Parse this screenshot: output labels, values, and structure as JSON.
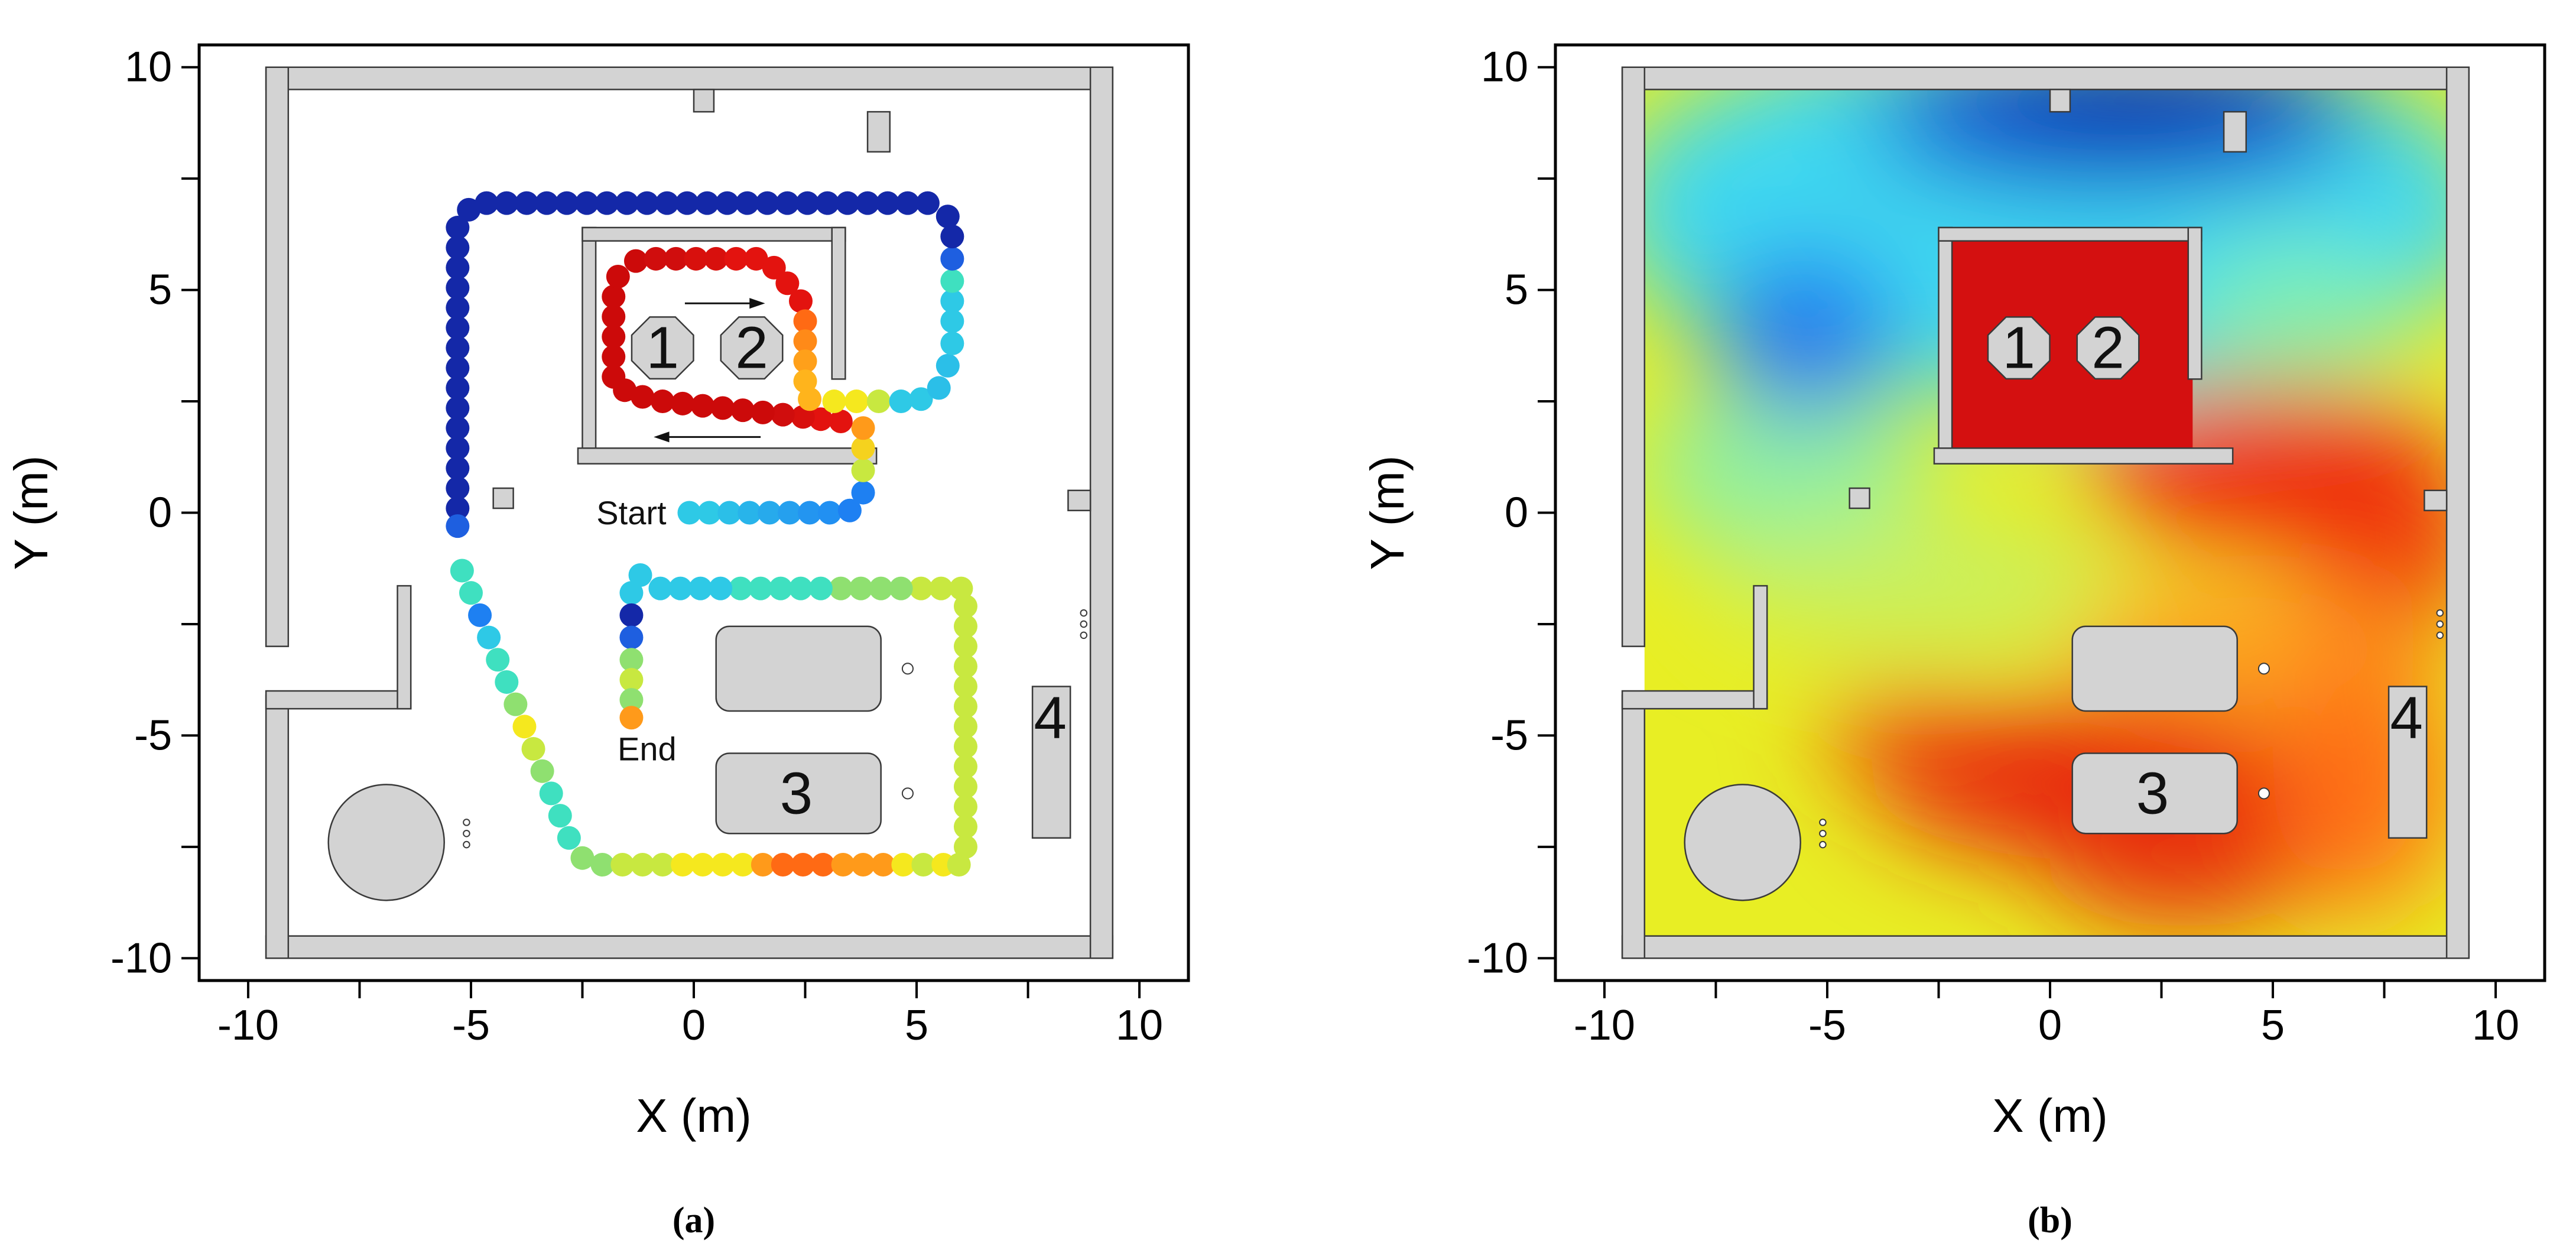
{
  "chart_data": [
    {
      "type": "scatter",
      "caption": "(a)",
      "xlabel": "X (m)",
      "ylabel": "Y (m)",
      "xlim": [
        -11.1,
        11.1
      ],
      "ylim": [
        -10.5,
        10.5
      ],
      "xticks": [
        -10,
        -5,
        0,
        5,
        10
      ],
      "yticks": [
        -10,
        -5,
        0,
        5,
        10
      ],
      "xminor": [
        -7.5,
        -2.5,
        2.5,
        7.5
      ],
      "yminor": [
        -7.5,
        -2.5,
        2.5,
        7.5
      ],
      "x": [
        -0.1,
        0.35,
        0.8,
        1.25,
        1.7,
        2.15,
        2.6,
        3.05,
        3.5,
        3.8,
        3.8,
        3.8,
        3.8,
        3.3,
        2.85,
        2.45,
        2.0,
        1.55,
        1.1,
        0.65,
        0.2,
        -0.25,
        -0.7,
        -1.15,
        -1.55,
        -1.8,
        -1.8,
        -1.8,
        -1.8,
        -1.8,
        -1.7,
        -1.3,
        -0.85,
        -0.4,
        0.05,
        0.5,
        0.95,
        1.4,
        1.8,
        2.1,
        2.4,
        2.5,
        2.5,
        2.5,
        2.5,
        2.6,
        3.15,
        3.65,
        4.15,
        4.65,
        5.1,
        5.5,
        5.7,
        5.8,
        5.8,
        5.8,
        5.8,
        5.8,
        5.8,
        5.7,
        5.25,
        4.8,
        4.35,
        3.9,
        3.45,
        3.0,
        2.55,
        2.1,
        1.65,
        1.2,
        0.75,
        0.3,
        -0.15,
        -0.6,
        -1.05,
        -1.5,
        -1.95,
        -2.4,
        -2.85,
        -3.3,
        -3.75,
        -4.2,
        -4.65,
        -5.05,
        -5.3,
        -5.3,
        -5.3,
        -5.3,
        -5.3,
        -5.3,
        -5.3,
        -5.3,
        -5.3,
        -5.3,
        -5.3,
        -5.3,
        -5.3,
        -5.3,
        -5.3,
        -5.3,
        -5.2,
        -5.0,
        -4.8,
        -4.6,
        -4.4,
        -4.2,
        -4.0,
        -3.8,
        -3.6,
        -3.4,
        -3.2,
        -3.0,
        -2.8,
        -2.5,
        -2.05,
        -1.6,
        -1.15,
        -0.7,
        -0.25,
        0.2,
        0.65,
        1.1,
        1.55,
        2.0,
        2.45,
        2.9,
        3.35,
        3.8,
        4.25,
        4.7,
        5.15,
        5.6,
        5.95,
        6.1,
        6.1,
        6.1,
        6.1,
        6.1,
        6.1,
        6.1,
        6.1,
        6.1,
        6.1,
        6.1,
        6.1,
        6.1,
        6.0,
        5.55,
        5.1,
        4.65,
        4.2,
        3.75,
        3.3,
        2.85,
        2.4,
        1.95,
        1.5,
        1.05,
        0.6,
        0.15,
        -0.3,
        -0.75,
        -1.2,
        -1.4,
        -1.4,
        -1.4,
        -1.4,
        -1.4,
        -1.4,
        -1.4
      ],
      "values": [
        0,
        0,
        0,
        0,
        0,
        0,
        0,
        0,
        0.05,
        0.45,
        0.95,
        1.45,
        1.9,
        2.05,
        2.1,
        2.15,
        2.2,
        2.25,
        2.3,
        2.35,
        2.4,
        2.45,
        2.5,
        2.6,
        2.75,
        3.05,
        3.5,
        3.95,
        4.4,
        4.85,
        5.3,
        5.65,
        5.7,
        5.7,
        5.7,
        5.7,
        5.7,
        5.7,
        5.5,
        5.15,
        4.75,
        4.3,
        3.85,
        3.4,
        2.95,
        2.55,
        2.5,
        2.5,
        2.5,
        2.5,
        2.55,
        2.8,
        3.3,
        3.8,
        4.3,
        4.75,
        5.2,
        5.7,
        6.2,
        6.65,
        6.95,
        6.95,
        6.95,
        6.95,
        6.95,
        6.95,
        6.95,
        6.95,
        6.95,
        6.95,
        6.95,
        6.95,
        6.95,
        6.95,
        6.95,
        6.95,
        6.95,
        6.95,
        6.95,
        6.95,
        6.95,
        6.95,
        6.95,
        6.8,
        6.4,
        5.95,
        5.5,
        5.05,
        4.6,
        4.15,
        3.7,
        3.25,
        2.8,
        2.35,
        1.9,
        1.45,
        1.0,
        0.55,
        0.1,
        -0.3,
        -1.3,
        -1.8,
        -2.3,
        -2.8,
        -3.3,
        -3.8,
        -4.3,
        -4.8,
        -5.3,
        -5.8,
        -6.3,
        -6.8,
        -7.3,
        -7.75,
        -7.9,
        -7.9,
        -7.9,
        -7.9,
        -7.9,
        -7.9,
        -7.9,
        -7.9,
        -7.9,
        -7.9,
        -7.9,
        -7.9,
        -7.9,
        -7.9,
        -7.9,
        -7.9,
        -7.9,
        -7.9,
        -7.9,
        -7.5,
        -7.05,
        -6.6,
        -6.15,
        -5.7,
        -5.25,
        -4.8,
        -4.35,
        -3.9,
        -3.45,
        -3.0,
        -2.55,
        -2.1,
        -1.7,
        -1.7,
        -1.7,
        -1.7,
        -1.7,
        -1.7,
        -1.7,
        -1.7,
        -1.7,
        -1.7,
        -1.7,
        -1.7,
        -1.7,
        -1.7,
        -1.7,
        -1.7,
        -1.4,
        -1.8,
        -2.3,
        -2.8,
        -3.3,
        -3.75,
        -4.2,
        -4.6
      ],
      "colors": [
        "#2ec9e6",
        "#2ec9e6",
        "#2bbfe8",
        "#28b4ea",
        "#27aaec",
        "#25a0ee",
        "#2395f0",
        "#2190f2",
        "#1e80f2",
        "#1e80f2",
        "#c8e840",
        "#f5d21e",
        "#ff9a1a",
        "#e3130f",
        "#e3130f",
        "#d8100d",
        "#d00d0d",
        "#cc0a0a",
        "#cc0a0a",
        "#cc0a0a",
        "#cc0a0a",
        "#cc0a0a",
        "#cc0a0a",
        "#cc0a0a",
        "#cc0a0a",
        "#cc0a0a",
        "#cc0a0a",
        "#cc0a0a",
        "#cc0a0a",
        "#cc0a0a",
        "#cc0a0a",
        "#cc0a0a",
        "#d00d0d",
        "#d00d0d",
        "#d8100d",
        "#d8100d",
        "#e3130f",
        "#e3130f",
        "#e3130f",
        "#e3130f",
        "#e3130f",
        "#ff6a14",
        "#ff8a18",
        "#ffa01a",
        "#ffb41c",
        "#ffb41c",
        "#f5e81e",
        "#f5e81e",
        "#c8e840",
        "#2ec9e6",
        "#2ec9e6",
        "#2bbfe8",
        "#2bbfe8",
        "#2ec9e6",
        "#2ec9e6",
        "#2ec9e6",
        "#3fe0c0",
        "#1e5fe0",
        "#1428a8",
        "#1428a8",
        "#1428a8",
        "#1428a8",
        "#1428a8",
        "#1428a8",
        "#1428a8",
        "#1428a8",
        "#1428a8",
        "#1428a8",
        "#1428a8",
        "#1428a8",
        "#1428a8",
        "#1428a8",
        "#1428a8",
        "#1428a8",
        "#1428a8",
        "#1428a8",
        "#1428a8",
        "#1428a8",
        "#1428a8",
        "#1428a8",
        "#1428a8",
        "#1428a8",
        "#1428a8",
        "#1428a8",
        "#1428a8",
        "#1428a8",
        "#1428a8",
        "#1428a8",
        "#1428a8",
        "#1428a8",
        "#1428a8",
        "#1428a8",
        "#1428a8",
        "#1428a8",
        "#1428a8",
        "#1428a8",
        "#1428a8",
        "#1428a8",
        "#1428a8",
        "#1e5fe0",
        "#3fe0c0",
        "#3fe0c0",
        "#1e80f2",
        "#2ec9e6",
        "#3fe0c0",
        "#3fe0c0",
        "#8fe070",
        "#f5e81e",
        "#c8e840",
        "#8fe070",
        "#3fe0c0",
        "#3fe0c0",
        "#3fe0c0",
        "#8fe070",
        "#8fe070",
        "#c8e840",
        "#c8e840",
        "#c8e840",
        "#f5e81e",
        "#f5e81e",
        "#f5e81e",
        "#f5e81e",
        "#ff9a1a",
        "#ff6a14",
        "#ff6a14",
        "#ff6a14",
        "#ff9a1a",
        "#ff9a1a",
        "#ff9a1a",
        "#f5e81e",
        "#c8e840",
        "#f5e81e",
        "#c8e840",
        "#c8e840",
        "#c8e840",
        "#c8e840",
        "#c8e840",
        "#c8e840",
        "#c8e840",
        "#c8e840",
        "#c8e840",
        "#c8e840",
        "#c8e840",
        "#c8e840",
        "#c8e840",
        "#c8e840",
        "#c8e840",
        "#c8e840",
        "#c8e840",
        "#8fe070",
        "#8fe070",
        "#8fe070",
        "#8fe070",
        "#3fe0c0",
        "#3fe0c0",
        "#3fe0c0",
        "#3fe0c0",
        "#3fe0c0",
        "#2ec9e6",
        "#2ec9e6",
        "#2ec9e6",
        "#2ec9e6",
        "#2ec9e6",
        "#2ec9e6",
        "#1428a8",
        "#1e5fe0",
        "#8fe070",
        "#c8e840",
        "#8fe070",
        "#ff9a1a"
      ],
      "annotations": [
        {
          "text": "1",
          "x": -0.7,
          "y": 3.7
        },
        {
          "text": "2",
          "x": 1.3,
          "y": 3.7
        },
        {
          "text": "3",
          "x": 2.3,
          "y": -6.3
        },
        {
          "text": "4",
          "x": 8.0,
          "y": -4.6
        },
        {
          "text": "Start",
          "x": -1.4,
          "y": 0.0
        },
        {
          "text": "End",
          "x": -1.05,
          "y": -5.3
        }
      ]
    },
    {
      "type": "heatmap",
      "caption": "(b)",
      "xlabel": "X (m)",
      "ylabel": "Y (m)",
      "xlim": [
        -11.1,
        11.1
      ],
      "ylim": [
        -10.5,
        10.5
      ],
      "xticks": [
        -10,
        -5,
        0,
        5,
        10
      ],
      "yticks": [
        -10,
        -5,
        0,
        5,
        10
      ],
      "xminor": [
        -7.5,
        -2.5,
        2.5,
        7.5
      ],
      "yminor": [
        -7.5,
        -2.5,
        2.5,
        7.5
      ],
      "annotations": [
        {
          "text": "1",
          "x": -0.7,
          "y": 3.7
        },
        {
          "text": "2",
          "x": 1.3,
          "y": 3.7
        },
        {
          "text": "3",
          "x": 2.3,
          "y": -6.3
        },
        {
          "text": "4",
          "x": 8.0,
          "y": -4.6
        }
      ]
    }
  ]
}
